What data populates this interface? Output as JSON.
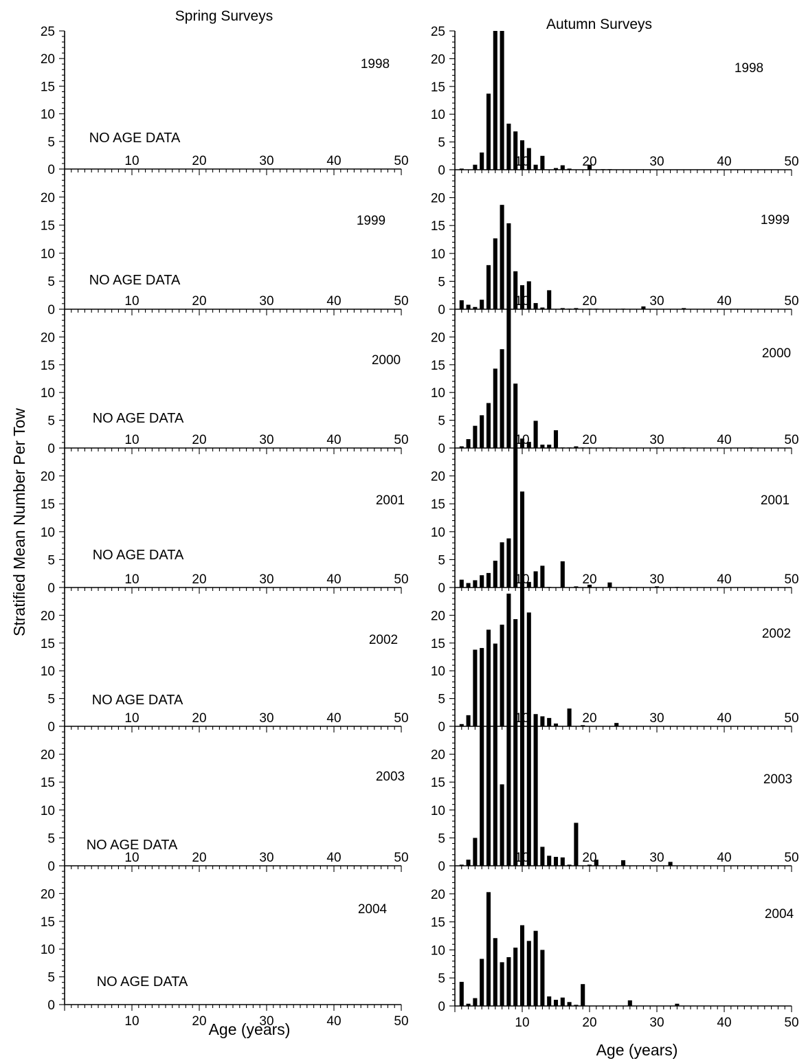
{
  "column_titles": [
    "Spring Surveys",
    "Autumn Surveys"
  ],
  "ylabel": "Stratified Mean Number Per Tow",
  "xlabel": "Age (years)",
  "no_data_text": "NO AGE DATA",
  "chart_data": [
    {
      "type": "bar",
      "survey": "Spring Surveys",
      "year_label": "1998",
      "no_data": true,
      "xlim": [
        0,
        50
      ],
      "ylim": [
        0,
        25
      ],
      "yticks": [
        0,
        5,
        10,
        15,
        20,
        25
      ],
      "xticks": [],
      "ages": [],
      "values": []
    },
    {
      "type": "bar",
      "survey": "Spring Surveys",
      "year_label": "1999",
      "no_data": true,
      "xlim": [
        0,
        50
      ],
      "ylim": [
        0,
        25
      ],
      "yticks": [
        0,
        5,
        10,
        15,
        20
      ],
      "xticks": [
        10,
        20,
        30,
        40,
        50
      ],
      "ages": [],
      "values": []
    },
    {
      "type": "bar",
      "survey": "Spring Surveys",
      "year_label": "2000",
      "no_data": true,
      "xlim": [
        0,
        50
      ],
      "ylim": [
        0,
        25
      ],
      "yticks": [
        0,
        5,
        10,
        15,
        20
      ],
      "xticks": [
        10,
        20,
        30,
        40,
        50
      ],
      "ages": [],
      "values": []
    },
    {
      "type": "bar",
      "survey": "Spring Surveys",
      "year_label": "2001",
      "no_data": true,
      "xlim": [
        0,
        50
      ],
      "ylim": [
        0,
        25
      ],
      "yticks": [
        0,
        5,
        10,
        15,
        20
      ],
      "xticks": [
        10,
        20,
        30,
        40,
        50
      ],
      "ages": [],
      "values": []
    },
    {
      "type": "bar",
      "survey": "Spring Surveys",
      "year_label": "2002",
      "no_data": true,
      "xlim": [
        0,
        50
      ],
      "ylim": [
        0,
        25
      ],
      "yticks": [
        0,
        5,
        10,
        15,
        20
      ],
      "xticks": [
        10,
        20,
        30,
        40,
        50
      ],
      "ages": [],
      "values": []
    },
    {
      "type": "bar",
      "survey": "Spring Surveys",
      "year_label": "2003",
      "no_data": true,
      "xlim": [
        0,
        50
      ],
      "ylim": [
        0,
        25
      ],
      "yticks": [
        0,
        5,
        10,
        15,
        20
      ],
      "xticks": [
        10,
        20,
        30,
        40,
        50
      ],
      "ages": [],
      "values": []
    },
    {
      "type": "bar",
      "survey": "Spring Surveys",
      "year_label": "2004",
      "no_data": true,
      "xlim": [
        0,
        50
      ],
      "ylim": [
        0,
        25
      ],
      "yticks": [
        0,
        5,
        10,
        15,
        20
      ],
      "xticks": [
        10,
        20,
        30,
        40,
        50
      ],
      "ages": [],
      "values": []
    },
    {
      "type": "bar",
      "survey": "Autumn Surveys",
      "year_label": "1998",
      "no_data": false,
      "xlim": [
        0,
        50
      ],
      "ylim": [
        0,
        25
      ],
      "yticks": [
        0,
        5,
        10,
        15,
        20,
        25
      ],
      "xticks": [],
      "ages": [
        1,
        2,
        3,
        4,
        5,
        6,
        7,
        8,
        9,
        10,
        11,
        12,
        13,
        14,
        15,
        16,
        17,
        18,
        19,
        20,
        21,
        22,
        23
      ],
      "values": [
        0.2,
        0,
        0.9,
        3.1,
        13.7,
        25,
        25,
        8.3,
        6.9,
        5.3,
        3.9,
        0.9,
        2.5,
        0,
        0.3,
        0.8,
        0.2,
        0,
        0,
        0.9,
        0,
        0.1,
        0.1
      ]
    },
    {
      "type": "bar",
      "survey": "Autumn Surveys",
      "year_label": "1999",
      "no_data": false,
      "xlim": [
        0,
        50
      ],
      "ylim": [
        0,
        25
      ],
      "yticks": [
        0,
        5,
        10,
        15,
        20
      ],
      "xticks": [
        10,
        20,
        30,
        40,
        50
      ],
      "ages": [
        1,
        2,
        3,
        4,
        5,
        6,
        7,
        8,
        9,
        10,
        11,
        12,
        13,
        14,
        15,
        16,
        17,
        18,
        19,
        20,
        21,
        22,
        23,
        24,
        25,
        26,
        27,
        28,
        29,
        30,
        31,
        32,
        33,
        34,
        35
      ],
      "values": [
        1.6,
        0.8,
        0.4,
        1.7,
        7.9,
        12.7,
        18.7,
        15.4,
        6.8,
        4.3,
        5.0,
        1.1,
        0.3,
        3.4,
        0,
        0.2,
        0.1,
        0.2,
        0,
        0.1,
        0.1,
        0,
        0,
        0,
        0.1,
        0,
        0,
        0.5,
        0,
        0,
        0,
        0,
        0,
        0.2,
        0
      ]
    },
    {
      "type": "bar",
      "survey": "Autumn Surveys",
      "year_label": "2000",
      "no_data": false,
      "xlim": [
        0,
        50
      ],
      "ylim": [
        0,
        25
      ],
      "yticks": [
        0,
        5,
        10,
        15,
        20
      ],
      "xticks": [
        10,
        20,
        30,
        40,
        50
      ],
      "ages": [
        1,
        2,
        3,
        4,
        5,
        6,
        7,
        8,
        9,
        10,
        11,
        12,
        13,
        14,
        15,
        16,
        17,
        18,
        19,
        20,
        21,
        22,
        23,
        24,
        25,
        26,
        27,
        28,
        29,
        30,
        31,
        32,
        33,
        34,
        35,
        36,
        37,
        38,
        39,
        40,
        41,
        42,
        43,
        44
      ],
      "values": [
        0.3,
        1.6,
        4.0,
        5.9,
        8.1,
        14.3,
        17.8,
        25,
        11.6,
        1.7,
        1.1,
        4.9,
        0.6,
        0.6,
        3.2,
        0.1,
        0.1,
        0.3,
        0.1,
        0.1,
        0,
        0,
        0.1,
        0,
        0,
        0,
        0,
        0,
        0,
        0.1,
        0,
        0,
        0,
        0.1,
        0,
        0,
        0,
        0,
        0,
        0,
        0,
        0,
        0,
        0.1
      ]
    },
    {
      "type": "bar",
      "survey": "Autumn Surveys",
      "year_label": "2001",
      "no_data": false,
      "xlim": [
        0,
        50
      ],
      "ylim": [
        0,
        25
      ],
      "yticks": [
        0,
        5,
        10,
        15,
        20
      ],
      "xticks": [
        10,
        20,
        30,
        40,
        50
      ],
      "ages": [
        1,
        2,
        3,
        4,
        5,
        6,
        7,
        8,
        9,
        10,
        11,
        12,
        13,
        14,
        15,
        16,
        17,
        18,
        19,
        20,
        21,
        22,
        23,
        24,
        25,
        26,
        27,
        28,
        29,
        30,
        31,
        32,
        33
      ],
      "values": [
        1.4,
        0.8,
        1.3,
        2.2,
        2.6,
        4.8,
        8.1,
        8.8,
        25,
        17.2,
        1.0,
        2.9,
        3.9,
        0.1,
        0,
        4.7,
        0,
        0.2,
        0,
        0.5,
        0,
        0,
        0.9,
        0,
        0,
        0.1,
        0,
        0,
        0,
        0.2,
        0,
        0,
        0.1
      ]
    },
    {
      "type": "bar",
      "survey": "Autumn Surveys",
      "year_label": "2002",
      "no_data": false,
      "xlim": [
        0,
        50
      ],
      "ylim": [
        0,
        25
      ],
      "yticks": [
        0,
        5,
        10,
        15,
        20
      ],
      "xticks": [
        10,
        20,
        30,
        40,
        50
      ],
      "ages": [
        1,
        2,
        3,
        4,
        5,
        6,
        7,
        8,
        9,
        10,
        11,
        12,
        13,
        14,
        15,
        16,
        17,
        18,
        19,
        20,
        21,
        22,
        23,
        24
      ],
      "values": [
        0.4,
        2.0,
        13.8,
        14.1,
        17.4,
        14.9,
        18.3,
        23.9,
        19.3,
        25,
        20.5,
        2.2,
        1.8,
        1.5,
        0.5,
        0,
        3.2,
        0,
        0.2,
        0,
        0,
        0,
        0,
        0.6
      ]
    },
    {
      "type": "bar",
      "survey": "Autumn Surveys",
      "year_label": "2003",
      "no_data": false,
      "xlim": [
        0,
        50
      ],
      "ylim": [
        0,
        25
      ],
      "yticks": [
        0,
        5,
        10,
        15,
        20
      ],
      "xticks": [
        10,
        20,
        30,
        40,
        50
      ],
      "ages": [
        1,
        2,
        3,
        4,
        5,
        6,
        7,
        8,
        9,
        10,
        11,
        12,
        13,
        14,
        15,
        16,
        17,
        18,
        19,
        20,
        21,
        22,
        23,
        24,
        25,
        26,
        27,
        28,
        29,
        30,
        31,
        32
      ],
      "values": [
        0.2,
        1.1,
        5.0,
        25,
        25,
        25,
        14.6,
        25,
        25,
        25,
        25,
        25,
        3.4,
        1.8,
        1.6,
        1.5,
        0.2,
        7.7,
        0,
        0.2,
        1.1,
        0,
        0,
        0,
        1.0,
        0,
        0,
        0,
        0,
        0,
        0,
        0.7
      ]
    },
    {
      "type": "bar",
      "survey": "Autumn Surveys",
      "year_label": "2004",
      "no_data": false,
      "xlim": [
        0,
        50
      ],
      "ylim": [
        0,
        25
      ],
      "yticks": [
        0,
        5,
        10,
        15,
        20
      ],
      "xticks": [
        10,
        20,
        30,
        40,
        50
      ],
      "ages": [
        1,
        2,
        3,
        4,
        5,
        6,
        7,
        8,
        9,
        10,
        11,
        12,
        13,
        14,
        15,
        16,
        17,
        18,
        19,
        20,
        21,
        22,
        23,
        24,
        25,
        26,
        27,
        28,
        29,
        30,
        31,
        32,
        33
      ],
      "values": [
        4.3,
        0.4,
        1.4,
        8.4,
        20.3,
        12.1,
        7.8,
        8.7,
        10.4,
        14.4,
        11.6,
        13.4,
        10.0,
        1.7,
        1.1,
        1.5,
        0.7,
        0.2,
        3.9,
        0,
        0,
        0,
        0,
        0,
        0,
        1.0,
        0,
        0,
        0,
        0,
        0,
        0,
        0.4
      ]
    }
  ]
}
